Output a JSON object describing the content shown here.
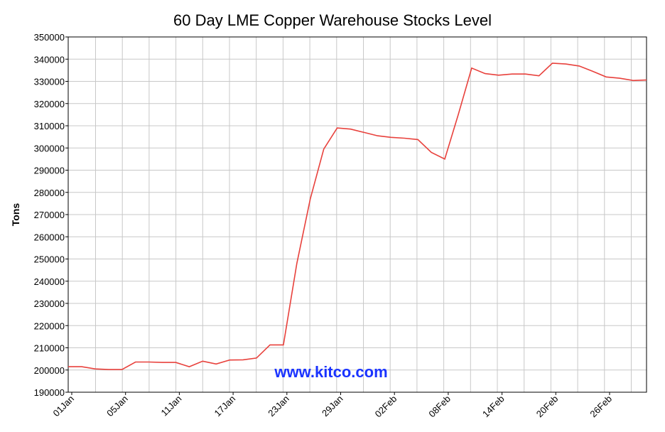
{
  "chart_data": {
    "type": "line",
    "title": "60 Day LME Copper Warehouse Stocks Level",
    "ylabel": "Tons",
    "xlabel": "",
    "ylim": [
      190000,
      350000
    ],
    "y_ticks": [
      190000,
      200000,
      210000,
      220000,
      230000,
      240000,
      250000,
      260000,
      270000,
      280000,
      290000,
      300000,
      310000,
      320000,
      330000,
      340000,
      350000
    ],
    "x_tick_labels": [
      "01Jan",
      "05Jan",
      "11Jan",
      "17Jan",
      "23Jan",
      "29Jan",
      "02Feb",
      "08Feb",
      "14Feb",
      "20Feb",
      "26Feb"
    ],
    "grid": true,
    "watermark": "www.kitco.com",
    "series": [
      {
        "color": "#e8413c",
        "values": [
          201500,
          201500,
          200500,
          200200,
          200200,
          203600,
          203600,
          203400,
          203400,
          201500,
          204000,
          202700,
          204500,
          204600,
          205400,
          211300,
          211300,
          248000,
          277000,
          299500,
          309000,
          308500,
          307000,
          305500,
          304800,
          304400,
          303800,
          298000,
          295000,
          315000,
          336000,
          333500,
          332800,
          333300,
          333300,
          332500,
          338200,
          337800,
          336900,
          334500,
          332000,
          331400,
          330400,
          330600
        ]
      }
    ]
  }
}
